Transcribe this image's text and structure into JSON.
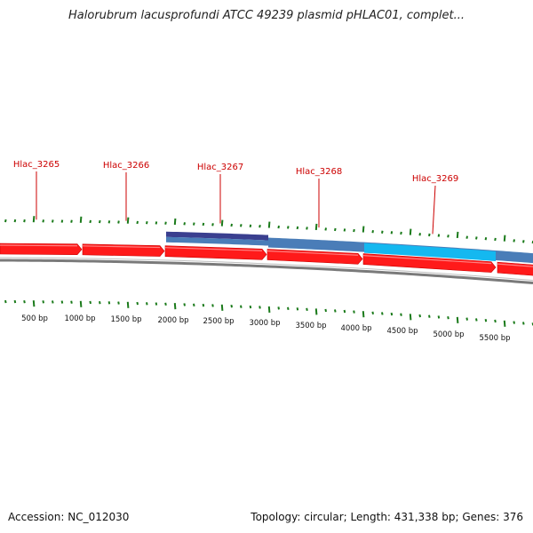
{
  "title": "Halorubrum lacusprofundi ATCC 49239 plasmid pHLAC01, complet...",
  "footer": {
    "accession": "Accession: NC_012030",
    "summary": "Topology: circular; Length: 431,338 bp; Genes: 376"
  },
  "gene_labels": [
    "Hlac_3265",
    "Hlac_3266",
    "Hlac_3267",
    "Hlac_3268",
    "Hlac_3269"
  ],
  "scale_labels": [
    "500 bp",
    "1000 bp",
    "1500 bp",
    "2000 bp",
    "2500 bp",
    "3000 bp",
    "3500 bp",
    "4000 bp",
    "4500 bp",
    "5000 bp",
    "5500 bp"
  ],
  "colors": {
    "gene": "#ff1a1a",
    "feature_navy": "#3a3f8f",
    "feature_steel": "#4a7db8",
    "feature_cyan": "#14b8f0",
    "backbone": "#7a7a7a",
    "tick": "#1a7a1a",
    "gene_label": "#cc0000"
  }
}
